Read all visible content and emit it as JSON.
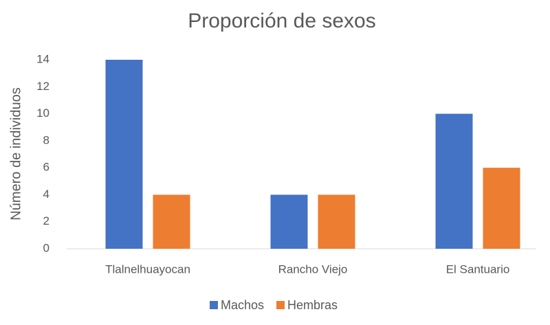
{
  "chart_data": {
    "type": "bar",
    "title": "Proporción de sexos",
    "y_label": "Número de individuos",
    "categories": [
      "Tlalnelhuayocan",
      "Rancho Viejo",
      "El Santuario"
    ],
    "series": [
      {
        "name": "Machos",
        "color": "#4472c4",
        "values": [
          14,
          4,
          10
        ]
      },
      {
        "name": "Hembras",
        "color": "#ed7d31",
        "values": [
          4,
          4,
          6
        ]
      }
    ],
    "ylim": [
      0,
      14
    ],
    "yticks": [
      0,
      2,
      4,
      6,
      8,
      10,
      12,
      14
    ],
    "grid": false,
    "legend": "bottom"
  }
}
